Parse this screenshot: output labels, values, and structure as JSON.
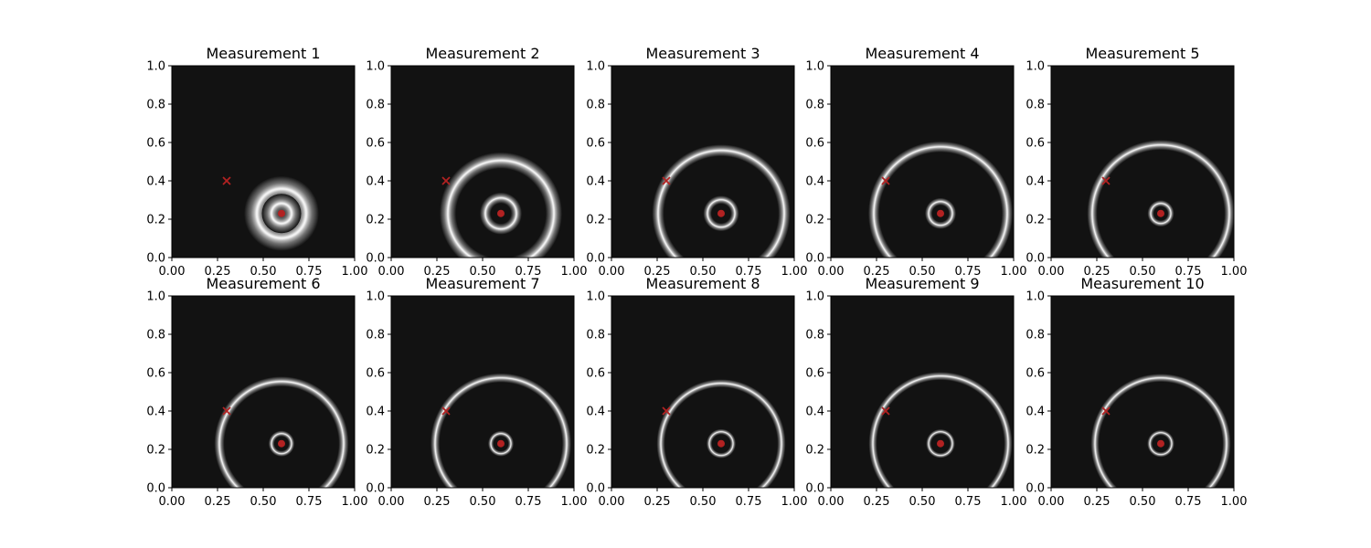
{
  "chart_data": {
    "type": "contour-grid",
    "layout": {
      "rows": 2,
      "cols": 5
    },
    "shared_axes": {
      "xlim": [
        0,
        1
      ],
      "ylim": [
        0,
        1
      ],
      "xticks": [
        0.0,
        0.25,
        0.5,
        0.75,
        1.0
      ],
      "xtick_labels": [
        "0.00",
        "0.25",
        "0.50",
        "0.75",
        "1.00"
      ],
      "yticks": [
        0.0,
        0.2,
        0.4,
        0.6,
        0.8,
        1.0
      ],
      "ytick_labels": [
        "0.0",
        "0.2",
        "0.4",
        "0.6",
        "0.8",
        "1.0"
      ]
    },
    "source_point": {
      "x": 0.6,
      "y": 0.23,
      "marker": "dot"
    },
    "sensor_point": {
      "x": 0.3,
      "y": 0.4,
      "marker": "x"
    },
    "colors": {
      "background": "#121212",
      "ring": "#f2f2f2",
      "marker": "#b22222"
    },
    "panels": [
      {
        "title": "Measurement 1",
        "inner": {
          "r": 0.055,
          "w": 0.105
        },
        "outer": {
          "r": 0.135,
          "w": 0.14
        }
      },
      {
        "title": "Measurement 2",
        "inner": {
          "r": 0.085,
          "w": 0.06
        },
        "outer": {
          "r": 0.29,
          "w": 0.09
        }
      },
      {
        "title": "Measurement 3",
        "inner": {
          "r": 0.075,
          "w": 0.045
        },
        "outer": {
          "r": 0.345,
          "w": 0.065
        }
      },
      {
        "title": "Measurement 4",
        "inner": {
          "r": 0.065,
          "w": 0.04
        },
        "outer": {
          "r": 0.365,
          "w": 0.06
        }
      },
      {
        "title": "Measurement 5",
        "inner": {
          "r": 0.055,
          "w": 0.035
        },
        "outer": {
          "r": 0.375,
          "w": 0.055
        }
      },
      {
        "title": "Measurement 6",
        "inner": {
          "r": 0.055,
          "w": 0.032
        },
        "outer": {
          "r": 0.34,
          "w": 0.055
        }
      },
      {
        "title": "Measurement 7",
        "inner": {
          "r": 0.055,
          "w": 0.03
        },
        "outer": {
          "r": 0.36,
          "w": 0.05
        }
      },
      {
        "title": "Measurement 8",
        "inner": {
          "r": 0.065,
          "w": 0.03
        },
        "outer": {
          "r": 0.33,
          "w": 0.045
        }
      },
      {
        "title": "Measurement 9",
        "inner": {
          "r": 0.065,
          "w": 0.028
        },
        "outer": {
          "r": 0.37,
          "w": 0.045
        }
      },
      {
        "title": "Measurement 10",
        "inner": {
          "r": 0.06,
          "w": 0.028
        },
        "outer": {
          "r": 0.36,
          "w": 0.045
        }
      }
    ]
  }
}
